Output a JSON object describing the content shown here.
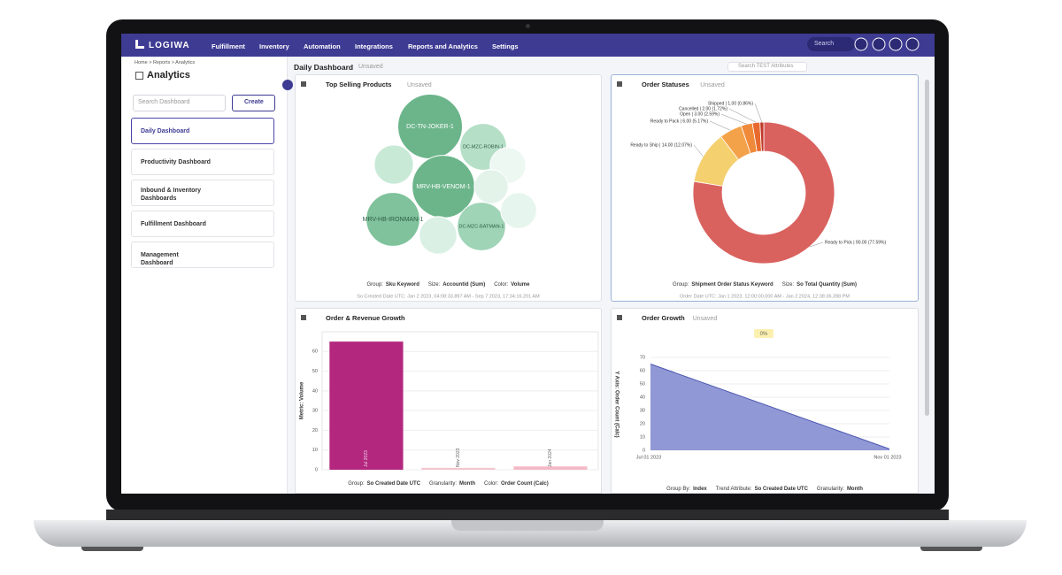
{
  "nav": {
    "logo": "LOGIWA",
    "menu": [
      "Fulfillment",
      "Inventory",
      "Automation",
      "Integrations",
      "Reports and Analytics",
      "Settings"
    ],
    "search": "Search"
  },
  "sidebar": {
    "breadcrumb": "Home > Reports > Analytics",
    "title": "Analytics",
    "search_placeholder": "Search Dashboard",
    "create": "Create",
    "dashboards": [
      "Daily Dashboard",
      "Productivity Dashboard",
      "Inbound & Inventory Dashboards",
      "Fulfillment Dashboard",
      "Management Dashboard"
    ]
  },
  "header": {
    "title": "Daily Dashboard",
    "status": "Unsaved",
    "search_placeholder": "Search TEST Attributes"
  },
  "widgets": [
    {
      "title": "Top Selling Products",
      "status": "Unsaved",
      "chart": {
        "type": "bubble",
        "labels": [
          "DC-TN-JOKER-1",
          "DC-MZC-ROBIN-1",
          "MRV-HB-VENOM-1",
          "DC-MZC-BATMAN-1",
          "MRV-HB-IRONMAN-1",
          null,
          null,
          null,
          null,
          null
        ],
        "values": [
          130,
          68,
          122,
          73,
          90,
          48,
          40,
          36,
          40,
          44
        ],
        "colors": [
          "#6cb58b",
          "#b5dfc7",
          "#6cb58b",
          "#9fd4b6",
          "#7fc29b",
          "#c9e9d7",
          "#eef8f3",
          "#e3f3ea",
          "#e6f5ed",
          "#daf0e4"
        ]
      },
      "footer": [
        {
          "label": "Group:",
          "value": "Sku Keyword"
        },
        {
          "label": "Size:",
          "value": "Accountid (Sum)"
        },
        {
          "label": "Color:",
          "value": "Volume"
        }
      ],
      "range": "So Created Date UTC: Jan 2 2023, 04:08:33.897 AM - Sep 7 2023, 17:34:16.201 AM"
    },
    {
      "title": "Order Statuses",
      "status": "Unsaved",
      "chart": {
        "type": "donut",
        "categories": [
          "Ready to Pick",
          "Ready to Ship",
          "Ready to Pack",
          "Open",
          "Cancelled",
          "Shipped"
        ],
        "values": [
          90,
          14,
          6,
          3,
          2,
          1
        ],
        "value_labels": [
          "Ready to Pick | 90.00 (77.59%)",
          "Ready to Ship | 14.00 (12.07%)",
          "Ready to Pack | 6.00 (5.17%)",
          "Open | 3.00 (2.59%)",
          "Cancelled | 2.00 (1.72%)",
          "Shipped | 1.00 (0.86%)"
        ],
        "colors": [
          "#d9625f",
          "#f5d06f",
          "#f3a24a",
          "#ef8a3a",
          "#e86a2e",
          "#c0392b"
        ]
      },
      "footer": [
        {
          "label": "Group:",
          "value": "Shipment Order Status Keyword"
        },
        {
          "label": "Size:",
          "value": "So Total Quantity (Sum)"
        }
      ],
      "range": "Order Date UTC: Jan 1 2023, 12:00:00.000 AM - Jan 2 2024, 12:38:36.398 PM"
    },
    {
      "title": "Order & Revenue Growth",
      "chart": {
        "type": "bar",
        "y_label": "Metric: Volume",
        "categories": [
          "Jul 2023",
          "Nov 2023",
          "Jan 2024"
        ],
        "values": [
          65,
          0.3,
          1
        ],
        "colors": [
          "#b3277f",
          "#f4c6cf",
          "#f4b9c6"
        ],
        "ylim": [
          0,
          70
        ],
        "yticks": [
          0,
          10,
          20,
          30,
          40,
          50,
          60
        ],
        "grid": true
      },
      "footer": [
        {
          "label": "Group:",
          "value": "So Created Date UTC"
        },
        {
          "label": "Granularity:",
          "value": "Month"
        },
        {
          "label": "Color:",
          "value": "Order Count (Calc)"
        }
      ]
    },
    {
      "title": "Order Growth",
      "status": "Unsaved",
      "badge": "0%",
      "chart": {
        "type": "area",
        "y_label": "Y Axis: Order Count (Calc)",
        "categories": [
          "Jul 01 2023",
          "Nov 01 2023"
        ],
        "values": [
          65,
          1
        ],
        "color": "#7c86cf",
        "ylim": [
          0,
          70
        ],
        "yticks": [
          0,
          10,
          20,
          30,
          40,
          50,
          60,
          70
        ],
        "grid": true
      },
      "footer": [
        {
          "label": "Group By:",
          "value": "Index"
        },
        {
          "label": "Trend Attribute:",
          "value": "So Created Date UTC"
        },
        {
          "label": "Granularity:",
          "value": "Month"
        }
      ]
    }
  ]
}
